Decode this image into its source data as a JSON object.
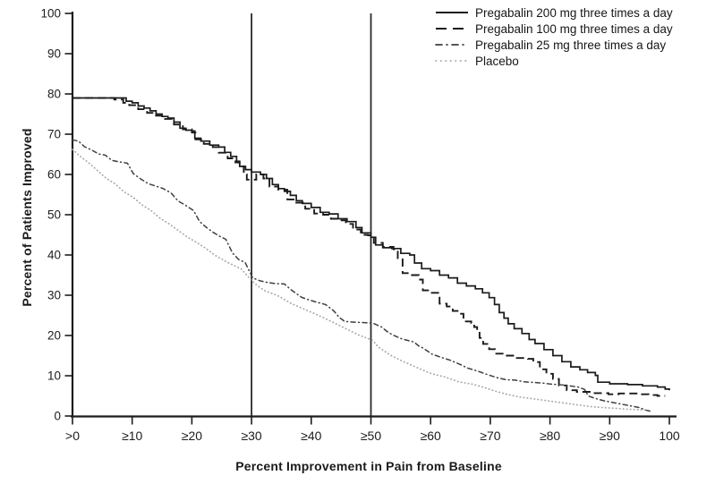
{
  "chart_data": {
    "type": "line",
    "title": "",
    "xlabel": "Percent Improvement in Pain from Baseline",
    "ylabel": "Percent of Patients Improved",
    "xlim": [
      0,
      100
    ],
    "ylim": [
      0,
      100
    ],
    "grid": false,
    "legend_position": "top-right",
    "axis_color": "#1c1c1c",
    "reference_line_color": "#2a2a2a",
    "reference_lines_x": [
      30,
      50
    ],
    "x_ticks": [
      {
        "value": 0,
        "label": ">0"
      },
      {
        "value": 10,
        "label": "≥10"
      },
      {
        "value": 20,
        "label": "≥20"
      },
      {
        "value": 30,
        "label": "≥30"
      },
      {
        "value": 40,
        "label": "≥40"
      },
      {
        "value": 50,
        "label": "≥50"
      },
      {
        "value": 60,
        "label": "≥60"
      },
      {
        "value": 70,
        "label": "≥70"
      },
      {
        "value": 80,
        "label": "≥80"
      },
      {
        "value": 90,
        "label": "≥90"
      },
      {
        "value": 100,
        "label": "100"
      }
    ],
    "y_ticks": [
      0,
      10,
      20,
      30,
      40,
      50,
      60,
      70,
      80,
      90,
      100
    ],
    "series": [
      {
        "name": "Pregabalin 200 mg three times a day",
        "style": "solid",
        "color": "#1b1b1b",
        "width": 1.7,
        "line_join": "step",
        "points": [
          [
            0,
            79
          ],
          [
            7.5,
            79
          ],
          [
            9,
            78.2
          ],
          [
            10,
            77.8
          ],
          [
            11,
            77
          ],
          [
            12,
            76.5
          ],
          [
            13,
            75.8
          ],
          [
            14,
            75
          ],
          [
            15,
            74.4
          ],
          [
            16,
            74
          ],
          [
            17,
            73
          ],
          [
            18,
            71.5
          ],
          [
            19,
            71
          ],
          [
            20,
            70.8
          ],
          [
            20.5,
            69
          ],
          [
            21.5,
            68.3
          ],
          [
            23,
            67.3
          ],
          [
            24.5,
            66.8
          ],
          [
            25.5,
            65.5
          ],
          [
            26.5,
            64.5
          ],
          [
            27.5,
            63.3
          ],
          [
            28,
            62
          ],
          [
            29,
            61.2
          ],
          [
            30,
            60.6
          ],
          [
            31.5,
            60
          ],
          [
            32.5,
            59
          ],
          [
            33.5,
            57.5
          ],
          [
            34.5,
            56.5
          ],
          [
            35.5,
            55.8
          ],
          [
            36.5,
            54.8
          ],
          [
            37.5,
            53.5
          ],
          [
            38.5,
            52.8
          ],
          [
            40,
            51.8
          ],
          [
            41.5,
            50.6
          ],
          [
            43,
            50.2
          ],
          [
            44.5,
            49
          ],
          [
            46,
            48.3
          ],
          [
            47.5,
            46.8
          ],
          [
            48.5,
            45.5
          ],
          [
            50,
            44.4
          ],
          [
            50.8,
            42.5
          ],
          [
            52,
            41.8
          ],
          [
            53.5,
            41.6
          ],
          [
            55,
            40.4
          ],
          [
            56.5,
            40
          ],
          [
            57.3,
            38
          ],
          [
            58.5,
            36.6
          ],
          [
            60,
            36.1
          ],
          [
            61.5,
            35
          ],
          [
            63,
            34.3
          ],
          [
            64.5,
            33
          ],
          [
            66,
            32.3
          ],
          [
            67.5,
            31.6
          ],
          [
            68.7,
            30.6
          ],
          [
            69.8,
            29.4
          ],
          [
            70.7,
            27.7
          ],
          [
            71.5,
            25.7
          ],
          [
            72.3,
            24.3
          ],
          [
            73,
            22.9
          ],
          [
            74,
            21.7
          ],
          [
            75.3,
            20.5
          ],
          [
            76.5,
            19
          ],
          [
            77.5,
            18
          ],
          [
            79,
            16.5
          ],
          [
            80.5,
            15
          ],
          [
            82,
            13.5
          ],
          [
            83.5,
            12.2
          ],
          [
            85,
            11.5
          ],
          [
            86.3,
            10.8
          ],
          [
            87.6,
            10.1
          ],
          [
            88,
            8.4
          ],
          [
            90,
            8
          ],
          [
            93,
            7.8
          ],
          [
            95.5,
            7.5
          ],
          [
            98,
            7.2
          ],
          [
            99.3,
            6.7
          ],
          [
            100,
            6.4
          ]
        ]
      },
      {
        "name": "Pregabalin 100 mg three times a day",
        "style": "dashed",
        "color": "#1b1b1b",
        "width": 1.9,
        "line_join": "step",
        "points": [
          [
            0,
            79
          ],
          [
            7,
            78.6
          ],
          [
            8.5,
            77.8
          ],
          [
            9.5,
            77.2
          ],
          [
            11,
            76.2
          ],
          [
            12.5,
            75.3
          ],
          [
            14,
            74.6
          ],
          [
            15.5,
            73.8
          ],
          [
            17,
            72.4
          ],
          [
            18.5,
            71.2
          ],
          [
            20,
            70.4
          ],
          [
            20.6,
            68.7
          ],
          [
            22,
            67.6
          ],
          [
            23.5,
            66.8
          ],
          [
            24.5,
            65.4
          ],
          [
            26,
            64
          ],
          [
            27.3,
            63
          ],
          [
            28,
            62
          ],
          [
            28.7,
            60
          ],
          [
            29.2,
            58.7
          ],
          [
            30.3,
            58.7
          ],
          [
            30.8,
            60
          ],
          [
            32,
            59
          ],
          [
            33,
            57
          ],
          [
            34.5,
            56.2
          ],
          [
            36,
            53.8
          ],
          [
            37.5,
            53
          ],
          [
            39,
            51.5
          ],
          [
            40.5,
            50.3
          ],
          [
            42,
            50
          ],
          [
            43.3,
            49
          ],
          [
            44.5,
            48.6
          ],
          [
            45.8,
            47.7
          ],
          [
            47,
            46.3
          ],
          [
            48.3,
            45
          ],
          [
            49.5,
            44.9
          ],
          [
            50.5,
            43
          ],
          [
            52,
            42
          ],
          [
            53.8,
            41.4
          ],
          [
            54.5,
            39.2
          ],
          [
            55.3,
            35.5
          ],
          [
            56.5,
            35
          ],
          [
            58,
            33.9
          ],
          [
            58.7,
            31.2
          ],
          [
            60,
            30.6
          ],
          [
            61.5,
            27.9
          ],
          [
            62.7,
            27.2
          ],
          [
            63.7,
            26.1
          ],
          [
            64.8,
            25.4
          ],
          [
            65.5,
            23.5
          ],
          [
            66.8,
            23.1
          ],
          [
            67.3,
            22.1
          ],
          [
            67.8,
            21.2
          ],
          [
            68.2,
            19.4
          ],
          [
            68.8,
            17.9
          ],
          [
            69.8,
            16.6
          ],
          [
            70.8,
            15.5
          ],
          [
            72.3,
            15
          ],
          [
            74,
            14.4
          ],
          [
            76.3,
            14.2
          ],
          [
            77.2,
            13.4
          ],
          [
            78.3,
            11.6
          ],
          [
            79.4,
            10.5
          ],
          [
            80.5,
            9.2
          ],
          [
            81.5,
            7.6
          ],
          [
            82.8,
            6.4
          ],
          [
            84.5,
            6
          ],
          [
            87,
            5.7
          ],
          [
            89.8,
            5.4
          ],
          [
            91.5,
            5.6
          ],
          [
            93.5,
            5.6
          ],
          [
            95,
            5.4
          ],
          [
            96.5,
            5.2
          ],
          [
            98,
            5
          ],
          [
            99.3,
            5
          ]
        ]
      },
      {
        "name": "Pregabalin 25 mg three times a day",
        "style": "dash-dot",
        "color": "#3f3f3f",
        "width": 1.5,
        "line_join": "linear",
        "points": [
          [
            0,
            68.6
          ],
          [
            1,
            68.3
          ],
          [
            2,
            66.9
          ],
          [
            3.2,
            66.1
          ],
          [
            4.4,
            65.1
          ],
          [
            5.5,
            64.8
          ],
          [
            6.6,
            63.5
          ],
          [
            8,
            63.1
          ],
          [
            9.2,
            62.8
          ],
          [
            10.2,
            60.2
          ],
          [
            11.4,
            58.9
          ],
          [
            12.7,
            57.7
          ],
          [
            14,
            57.1
          ],
          [
            15.2,
            56.5
          ],
          [
            16.5,
            55.4
          ],
          [
            17.7,
            53.4
          ],
          [
            19,
            52.3
          ],
          [
            20.3,
            51
          ],
          [
            21.3,
            48.3
          ],
          [
            22.4,
            46.9
          ],
          [
            23.5,
            45.7
          ],
          [
            24.6,
            44.7
          ],
          [
            25.7,
            43.9
          ],
          [
            26.8,
            40.5
          ],
          [
            27.9,
            38.8
          ],
          [
            28.9,
            38.2
          ],
          [
            30.2,
            34.3
          ],
          [
            31.4,
            33.6
          ],
          [
            32.6,
            33.2
          ],
          [
            34,
            32.9
          ],
          [
            35.5,
            32.8
          ],
          [
            36.5,
            31.5
          ],
          [
            37.5,
            30.4
          ],
          [
            38.4,
            29.5
          ],
          [
            39.3,
            29
          ],
          [
            40.8,
            28.3
          ],
          [
            42.4,
            27.7
          ],
          [
            43.8,
            26.1
          ],
          [
            44.7,
            24.5
          ],
          [
            45.6,
            23.5
          ],
          [
            47.2,
            23.3
          ],
          [
            48.8,
            23.2
          ],
          [
            50.3,
            23.1
          ],
          [
            51.8,
            22.1
          ],
          [
            52.7,
            21
          ],
          [
            53.7,
            20.1
          ],
          [
            55.3,
            19.1
          ],
          [
            57.2,
            18.4
          ],
          [
            58,
            17.4
          ],
          [
            58.7,
            16.9
          ],
          [
            60.2,
            15.4
          ],
          [
            61.7,
            14.6
          ],
          [
            63.2,
            13.9
          ],
          [
            64.8,
            12.9
          ],
          [
            66.2,
            11.9
          ],
          [
            67.8,
            11.2
          ],
          [
            69.3,
            10.4
          ],
          [
            71.2,
            9.5
          ],
          [
            72.7,
            9
          ],
          [
            74.2,
            8.9
          ],
          [
            75.7,
            8.5
          ],
          [
            78.7,
            8.2
          ],
          [
            80.2,
            7.9
          ],
          [
            82.4,
            7.7
          ],
          [
            84.7,
            7.2
          ],
          [
            85.8,
            6.6
          ],
          [
            86.4,
            5
          ],
          [
            87.5,
            4.4
          ],
          [
            89,
            3.8
          ],
          [
            90.7,
            3.3
          ],
          [
            92.1,
            2.9
          ],
          [
            93.6,
            2.5
          ],
          [
            95,
            2.1
          ],
          [
            96,
            1.5
          ],
          [
            96.8,
            1.2
          ]
        ]
      },
      {
        "name": "Placebo",
        "style": "dotted",
        "color": "#a6a6a6",
        "width": 1.7,
        "line_join": "linear",
        "points": [
          [
            0,
            66.2
          ],
          [
            1.4,
            64.4
          ],
          [
            2.7,
            62.9
          ],
          [
            4.1,
            61.1
          ],
          [
            5.6,
            59.1
          ],
          [
            7.1,
            57.7
          ],
          [
            8.6,
            55.7
          ],
          [
            10.2,
            54.3
          ],
          [
            11.7,
            52.4
          ],
          [
            13.2,
            51
          ],
          [
            14.7,
            49.1
          ],
          [
            16.2,
            47.7
          ],
          [
            17.7,
            46.1
          ],
          [
            19.2,
            44.5
          ],
          [
            20.8,
            43.1
          ],
          [
            22.3,
            41.7
          ],
          [
            23.8,
            40
          ],
          [
            25.8,
            38.3
          ],
          [
            28.3,
            36.5
          ],
          [
            29.8,
            34
          ],
          [
            30.6,
            32.8
          ],
          [
            32.1,
            31.2
          ],
          [
            34.4,
            29.9
          ],
          [
            36.7,
            27.9
          ],
          [
            38.9,
            26.5
          ],
          [
            41.2,
            25
          ],
          [
            43.5,
            23.4
          ],
          [
            45.8,
            21.7
          ],
          [
            48,
            20.1
          ],
          [
            50.3,
            18.8
          ],
          [
            51.2,
            17.2
          ],
          [
            53.3,
            15.1
          ],
          [
            55.6,
            13.4
          ],
          [
            57.9,
            11.9
          ],
          [
            60.2,
            10.5
          ],
          [
            62.4,
            9.7
          ],
          [
            64.7,
            8.5
          ],
          [
            67,
            7.9
          ],
          [
            69,
            7.1
          ],
          [
            71,
            6.1
          ],
          [
            73,
            5.3
          ],
          [
            75,
            4.7
          ],
          [
            77,
            4.3
          ],
          [
            79,
            3.9
          ],
          [
            81,
            3.5
          ],
          [
            83,
            3.1
          ],
          [
            85,
            2.7
          ],
          [
            87,
            2.3
          ],
          [
            89,
            2.1
          ],
          [
            91,
            1.9
          ],
          [
            93,
            1.7
          ],
          [
            94.5,
            1.6
          ],
          [
            96,
            1.5
          ]
        ]
      }
    ]
  }
}
